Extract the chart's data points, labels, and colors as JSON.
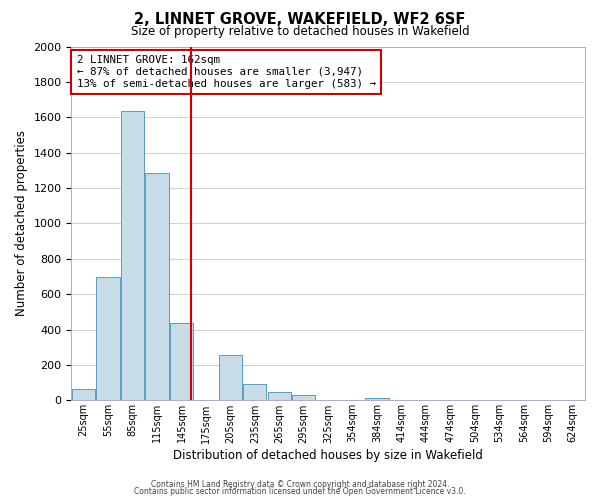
{
  "title": "2, LINNET GROVE, WAKEFIELD, WF2 6SF",
  "subtitle": "Size of property relative to detached houses in Wakefield",
  "xlabel": "Distribution of detached houses by size in Wakefield",
  "ylabel": "Number of detached properties",
  "bar_labels": [
    "25sqm",
    "55sqm",
    "85sqm",
    "115sqm",
    "145sqm",
    "175sqm",
    "205sqm",
    "235sqm",
    "265sqm",
    "295sqm",
    "325sqm",
    "354sqm",
    "384sqm",
    "414sqm",
    "444sqm",
    "474sqm",
    "504sqm",
    "534sqm",
    "564sqm",
    "594sqm",
    "624sqm"
  ],
  "bar_values": [
    65,
    695,
    1635,
    1285,
    440,
    0,
    255,
    90,
    50,
    30,
    0,
    0,
    15,
    0,
    0,
    0,
    0,
    0,
    0,
    0,
    0
  ],
  "vline_bar_index": 4.4,
  "bar_color": "#c8dce8",
  "bar_edge_color": "#5b9bbf",
  "vline_color": "#cc0000",
  "annotation_text": "2 LINNET GROVE: 162sqm\n← 87% of detached houses are smaller (3,947)\n13% of semi-detached houses are larger (583) →",
  "annotation_box_color": "#ffffff",
  "annotation_box_edge_color": "#cc0000",
  "ylim": [
    0,
    2000
  ],
  "yticks": [
    0,
    200,
    400,
    600,
    800,
    1000,
    1200,
    1400,
    1600,
    1800,
    2000
  ],
  "footnote1": "Contains HM Land Registry data © Crown copyright and database right 2024.",
  "footnote2": "Contains public sector information licensed under the Open Government Licence v3.0.",
  "background_color": "#ffffff",
  "grid_color": "#d0d0d0"
}
